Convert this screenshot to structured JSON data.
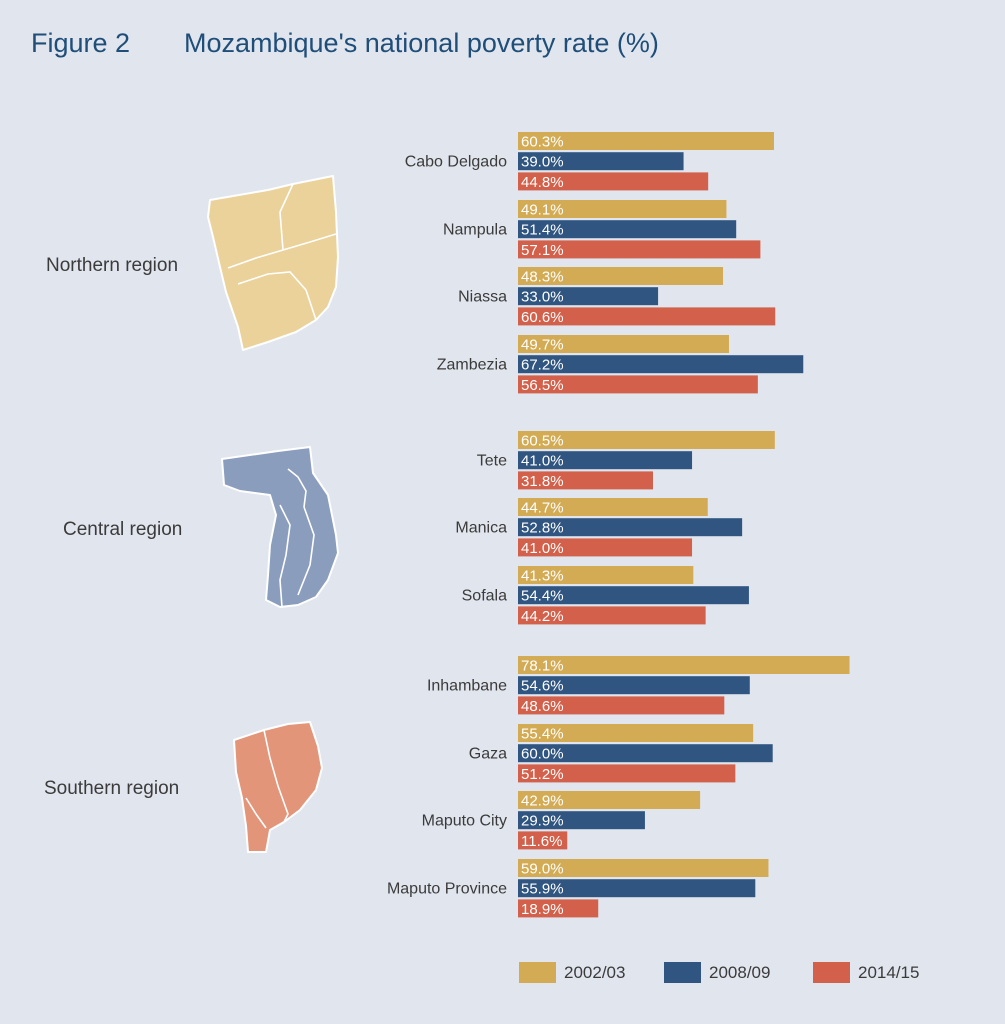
{
  "figure_label": "Figure 2",
  "title": "Mozambique's national poverty rate (%)",
  "colors": {
    "background": "#e1e5ee",
    "title": "#1f4e79",
    "text": "#3b3b3b",
    "northern_map": "#ebd29a",
    "central_map": "#8a9dbd",
    "southern_map": "#e3957a"
  },
  "regions": [
    {
      "label": "Northern region",
      "map": "northern-region-map"
    },
    {
      "label": "Central region",
      "map": "central-region-map"
    },
    {
      "label": "Southern region",
      "map": "southern-region-map"
    }
  ],
  "chart_data": {
    "type": "bar",
    "orientation": "horizontal",
    "unit": "%",
    "categories": [
      "Cabo Delgado",
      "Nampula",
      "Niassa",
      "Zambezia",
      "Tete",
      "Manica",
      "Sofala",
      "Inhambane",
      "Gaza",
      "Maputo City",
      "Maputo Province"
    ],
    "groups": [
      {
        "region": "Northern region",
        "categories": [
          "Cabo Delgado",
          "Nampula",
          "Niassa",
          "Zambezia"
        ]
      },
      {
        "region": "Central region",
        "categories": [
          "Tete",
          "Manica",
          "Sofala"
        ]
      },
      {
        "region": "Southern region",
        "categories": [
          "Inhambane",
          "Gaza",
          "Maputo City",
          "Maputo Province"
        ]
      }
    ],
    "series": [
      {
        "name": "2002/03",
        "color": "#d4ab55",
        "values": [
          60.3,
          49.1,
          48.3,
          49.7,
          60.5,
          44.7,
          41.3,
          78.1,
          55.4,
          42.9,
          59.0
        ]
      },
      {
        "name": "2008/09",
        "color": "#2f5580",
        "values": [
          39.0,
          51.4,
          33.0,
          67.2,
          41.0,
          52.8,
          54.4,
          54.6,
          60.0,
          29.9,
          55.9
        ]
      },
      {
        "name": "2014/15",
        "color": "#d2604a",
        "values": [
          44.8,
          57.1,
          60.6,
          56.5,
          31.8,
          41.0,
          44.2,
          48.6,
          51.2,
          11.6,
          18.9
        ]
      }
    ],
    "legend": "bottom",
    "grid": false
  }
}
